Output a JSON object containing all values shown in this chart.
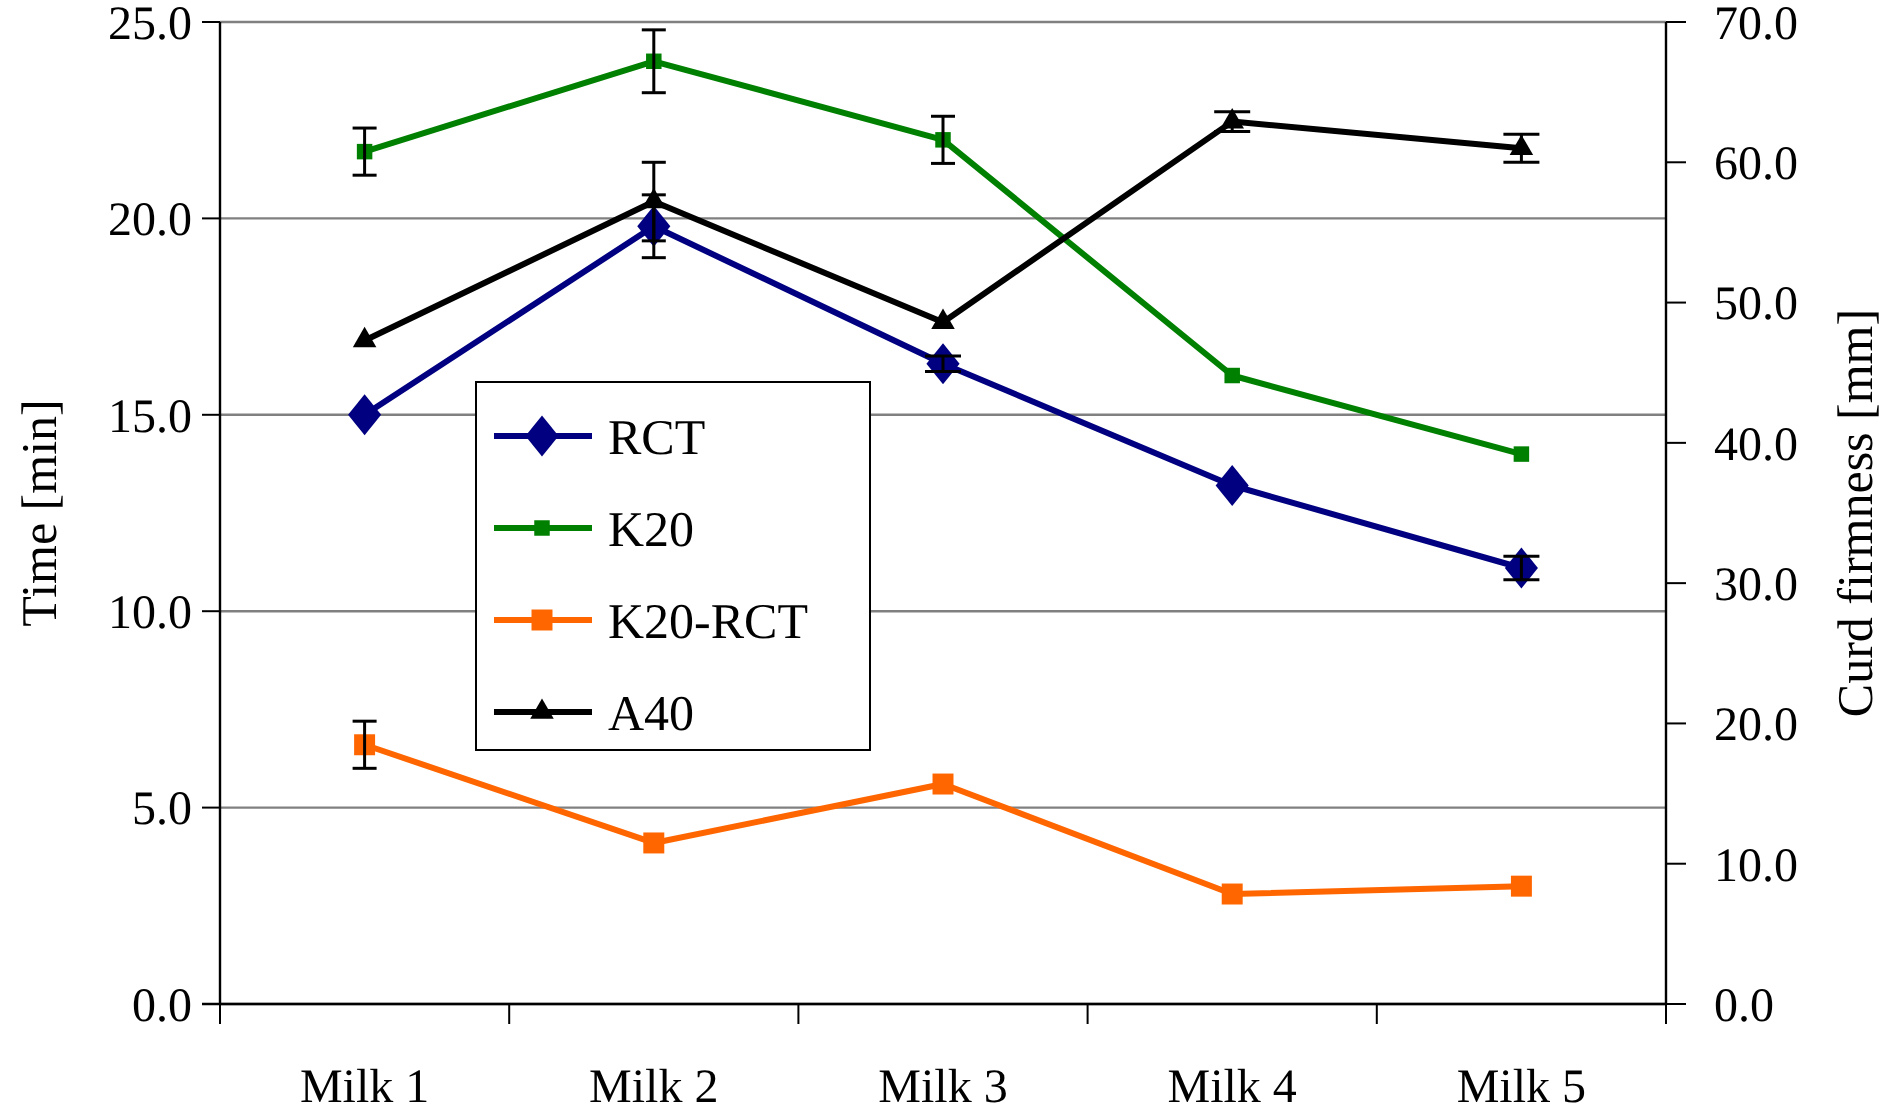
{
  "chart_data": {
    "type": "line",
    "categories": [
      "Milk 1",
      "Milk 2",
      "Milk 3",
      "Milk 4",
      "Milk 5"
    ],
    "ylabel": "Time [min]",
    "y2label": "Curd firmness [mm]",
    "ylim": [
      0,
      25
    ],
    "yticks": [
      {
        "value": 0,
        "label": "0.0"
      },
      {
        "value": 5,
        "label": "5.0"
      },
      {
        "value": 10,
        "label": "10.0"
      },
      {
        "value": 15,
        "label": "15.0"
      },
      {
        "value": 20,
        "label": "20.0"
      },
      {
        "value": 25,
        "label": "25.0"
      }
    ],
    "y2lim": [
      0,
      70
    ],
    "y2ticks": [
      {
        "value": 0,
        "label": "0.0"
      },
      {
        "value": 10,
        "label": "10.0"
      },
      {
        "value": 20,
        "label": "20.0"
      },
      {
        "value": 30,
        "label": "30.0"
      },
      {
        "value": 40,
        "label": "40.0"
      },
      {
        "value": 50,
        "label": "50.0"
      },
      {
        "value": 60,
        "label": "60.0"
      },
      {
        "value": 70,
        "label": "70.0"
      }
    ],
    "grid": "y",
    "legend": "left",
    "series": [
      {
        "name": "RCT",
        "color": "#000080",
        "marker": "diamond",
        "values": [
          15.0,
          19.8,
          16.3,
          13.2,
          11.1
        ],
        "errors": [
          null,
          0.8,
          0.2,
          null,
          0.3
        ]
      },
      {
        "name": "K20",
        "color": "#008000",
        "marker": "square",
        "values": [
          21.7,
          24.0,
          22.0,
          16.0,
          14.0
        ],
        "errors": [
          0.6,
          0.8,
          0.6,
          null,
          null
        ]
      },
      {
        "name": "K20-RCT",
        "color": "#ff6600",
        "marker": "square",
        "values": [
          6.6,
          4.1,
          5.6,
          2.8,
          3.0
        ],
        "errors": [
          0.6,
          null,
          null,
          null,
          null
        ]
      },
      {
        "name": "A40",
        "color": "#000000",
        "marker": "triangle",
        "axis": "y2",
        "values": [
          47.3,
          57.2,
          48.6,
          62.9,
          61.0
        ],
        "errors": [
          null,
          2.8,
          null,
          0.7,
          1.0
        ]
      }
    ]
  }
}
